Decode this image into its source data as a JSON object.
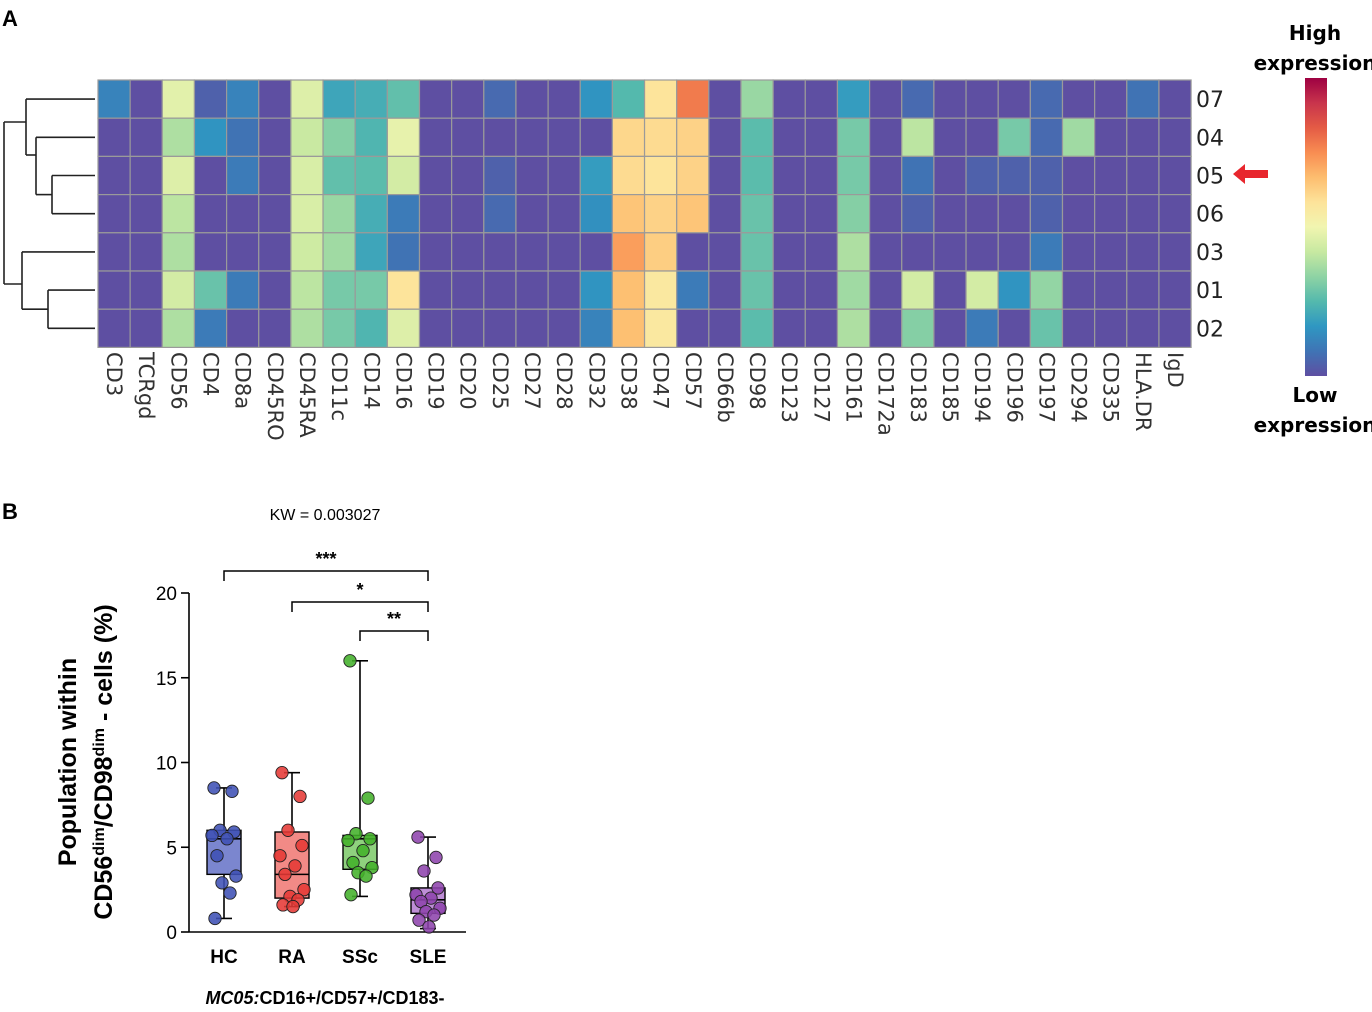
{
  "panel_a_label": "A",
  "panel_b_label": "B",
  "colorbar": {
    "high_line1": "High",
    "high_line2": "expression",
    "low_line1": "Low",
    "low_line2": "expression",
    "colors": [
      "#5e4fa2",
      "#3f74b5",
      "#2f97c2",
      "#54b9ad",
      "#8ed3a4",
      "#c7e9a1",
      "#f1f5b0",
      "#fde39a",
      "#fdbd6f",
      "#f88d52",
      "#e45b45",
      "#c8344c",
      "#9e0142"
    ]
  },
  "arrow_color": "#e8262d",
  "chart_data": [
    {
      "type": "heatmap",
      "title": "",
      "markers": [
        "CD3",
        "TCRgd",
        "CD56",
        "CD4",
        "CD8a",
        "CD45RO",
        "CD45RA",
        "CD11c",
        "CD14",
        "CD16",
        "CD19",
        "CD20",
        "CD25",
        "CD27",
        "CD28",
        "CD32",
        "CD38",
        "CD47",
        "CD57",
        "CD66b",
        "CD98",
        "CD123",
        "CD127",
        "CD161",
        "CD172a",
        "CD183",
        "CD185",
        "CD194",
        "CD196",
        "CD197",
        "CD294",
        "CD335",
        "HLA.DR",
        "IgD"
      ],
      "clusters": [
        "07",
        "04",
        "05",
        "06",
        "03",
        "01",
        "02"
      ],
      "highlighted_cluster": "05",
      "value_scale": "0 = low expression, 1 = high expression (estimated from color)",
      "values": [
        [
          0.12,
          0.0,
          0.47,
          0.04,
          0.12,
          0.0,
          0.46,
          0.2,
          0.22,
          0.27,
          0.0,
          0.0,
          0.06,
          0.0,
          0.0,
          0.16,
          0.25,
          0.58,
          0.78,
          0.0,
          0.35,
          0.0,
          0.0,
          0.18,
          0.0,
          0.06,
          0.0,
          0.0,
          0.0,
          0.06,
          0.0,
          0.0,
          0.08,
          0.0
        ],
        [
          0.0,
          0.0,
          0.38,
          0.16,
          0.08,
          0.0,
          0.42,
          0.32,
          0.24,
          0.48,
          0.0,
          0.0,
          0.0,
          0.0,
          0.0,
          0.0,
          0.61,
          0.6,
          0.62,
          0.0,
          0.26,
          0.0,
          0.0,
          0.3,
          0.0,
          0.4,
          0.0,
          0.0,
          0.3,
          0.06,
          0.36,
          0.0,
          0.0,
          0.0
        ],
        [
          0.0,
          0.0,
          0.46,
          0.0,
          0.1,
          0.0,
          0.45,
          0.27,
          0.26,
          0.44,
          0.0,
          0.0,
          0.04,
          0.0,
          0.0,
          0.18,
          0.6,
          0.58,
          0.62,
          0.0,
          0.26,
          0.0,
          0.0,
          0.3,
          0.0,
          0.08,
          0.0,
          0.04,
          0.04,
          0.04,
          0.0,
          0.0,
          0.0,
          0.0
        ],
        [
          0.0,
          0.0,
          0.4,
          0.0,
          0.0,
          0.0,
          0.45,
          0.35,
          0.22,
          0.1,
          0.0,
          0.0,
          0.06,
          0.0,
          0.0,
          0.15,
          0.65,
          0.62,
          0.65,
          0.0,
          0.28,
          0.0,
          0.0,
          0.32,
          0.0,
          0.04,
          0.0,
          0.0,
          0.0,
          0.04,
          0.0,
          0.0,
          0.0,
          0.0
        ],
        [
          0.0,
          0.0,
          0.38,
          0.0,
          0.0,
          0.0,
          0.43,
          0.36,
          0.2,
          0.08,
          0.0,
          0.0,
          0.0,
          0.0,
          0.0,
          0.0,
          0.72,
          0.63,
          0.0,
          0.0,
          0.28,
          0.0,
          0.0,
          0.38,
          0.0,
          0.0,
          0.0,
          0.0,
          0.0,
          0.1,
          0.0,
          0.0,
          0.0,
          0.0
        ],
        [
          0.0,
          0.0,
          0.44,
          0.28,
          0.1,
          0.0,
          0.4,
          0.3,
          0.3,
          0.58,
          0.0,
          0.0,
          0.0,
          0.0,
          0.0,
          0.16,
          0.66,
          0.56,
          0.1,
          0.0,
          0.28,
          0.0,
          0.0,
          0.36,
          0.0,
          0.44,
          0.0,
          0.44,
          0.16,
          0.34,
          0.0,
          0.0,
          0.0,
          0.0
        ],
        [
          0.0,
          0.0,
          0.38,
          0.1,
          0.0,
          0.0,
          0.38,
          0.3,
          0.24,
          0.46,
          0.0,
          0.0,
          0.0,
          0.0,
          0.0,
          0.12,
          0.66,
          0.56,
          0.0,
          0.0,
          0.26,
          0.0,
          0.0,
          0.38,
          0.0,
          0.32,
          0.0,
          0.1,
          0.0,
          0.28,
          0.0,
          0.0,
          0.0,
          0.0
        ]
      ]
    },
    {
      "type": "box",
      "title": "KW = 0.003027",
      "ylabel_line1": "Population within",
      "ylabel_line2_parts": [
        "CD56",
        "dim",
        "/CD98",
        "dim",
        " - cells (%)"
      ],
      "xlabel_prefix": "MC05:",
      "xlabel_rest": "CD16+/CD57+/CD183-",
      "ylim": [
        0,
        20
      ],
      "yticks": [
        "0",
        "5",
        "10",
        "15",
        "20"
      ],
      "categories": [
        "HC",
        "RA",
        "SSc",
        "SLE"
      ],
      "series": [
        {
          "name": "HC",
          "color": "#3f51b5",
          "box_color": "#7b86cf",
          "min": 0.8,
          "q1": 3.4,
          "median": 5.5,
          "q3": 6.0,
          "max": 8.5,
          "points": [
            8.5,
            8.3,
            6.0,
            5.9,
            5.7,
            5.5,
            4.5,
            3.3,
            2.9,
            2.3,
            0.8
          ]
        },
        {
          "name": "RA",
          "color": "#e53935",
          "box_color": "#f28a86",
          "min": 1.5,
          "q1": 2.0,
          "median": 3.4,
          "q3": 5.9,
          "max": 9.4,
          "points": [
            9.4,
            8.0,
            6.0,
            5.1,
            4.5,
            3.9,
            3.4,
            2.5,
            2.1,
            1.9,
            1.6,
            1.5
          ]
        },
        {
          "name": "SSc",
          "color": "#43b02a",
          "box_color": "#8fd17e",
          "min": 2.1,
          "q1": 3.7,
          "median": 5.5,
          "q3": 5.7,
          "max": 16.0,
          "points": [
            16.0,
            7.9,
            5.8,
            5.5,
            5.4,
            4.8,
            4.1,
            3.8,
            3.5,
            3.3,
            2.2
          ]
        },
        {
          "name": "SLE",
          "color": "#8e44ad",
          "box_color": "#be8ed6",
          "min": 0.2,
          "q1": 1.1,
          "median": 1.9,
          "q3": 2.6,
          "max": 5.6,
          "points": [
            5.6,
            4.4,
            3.6,
            2.6,
            2.2,
            2.0,
            1.8,
            1.4,
            1.2,
            1.0,
            0.7,
            0.3
          ]
        }
      ],
      "significance": [
        {
          "from": "HC",
          "to": "SLE",
          "label": "***"
        },
        {
          "from": "RA",
          "to": "SLE",
          "label": "*"
        },
        {
          "from": "SSc",
          "to": "SLE",
          "label": "**"
        }
      ]
    }
  ]
}
